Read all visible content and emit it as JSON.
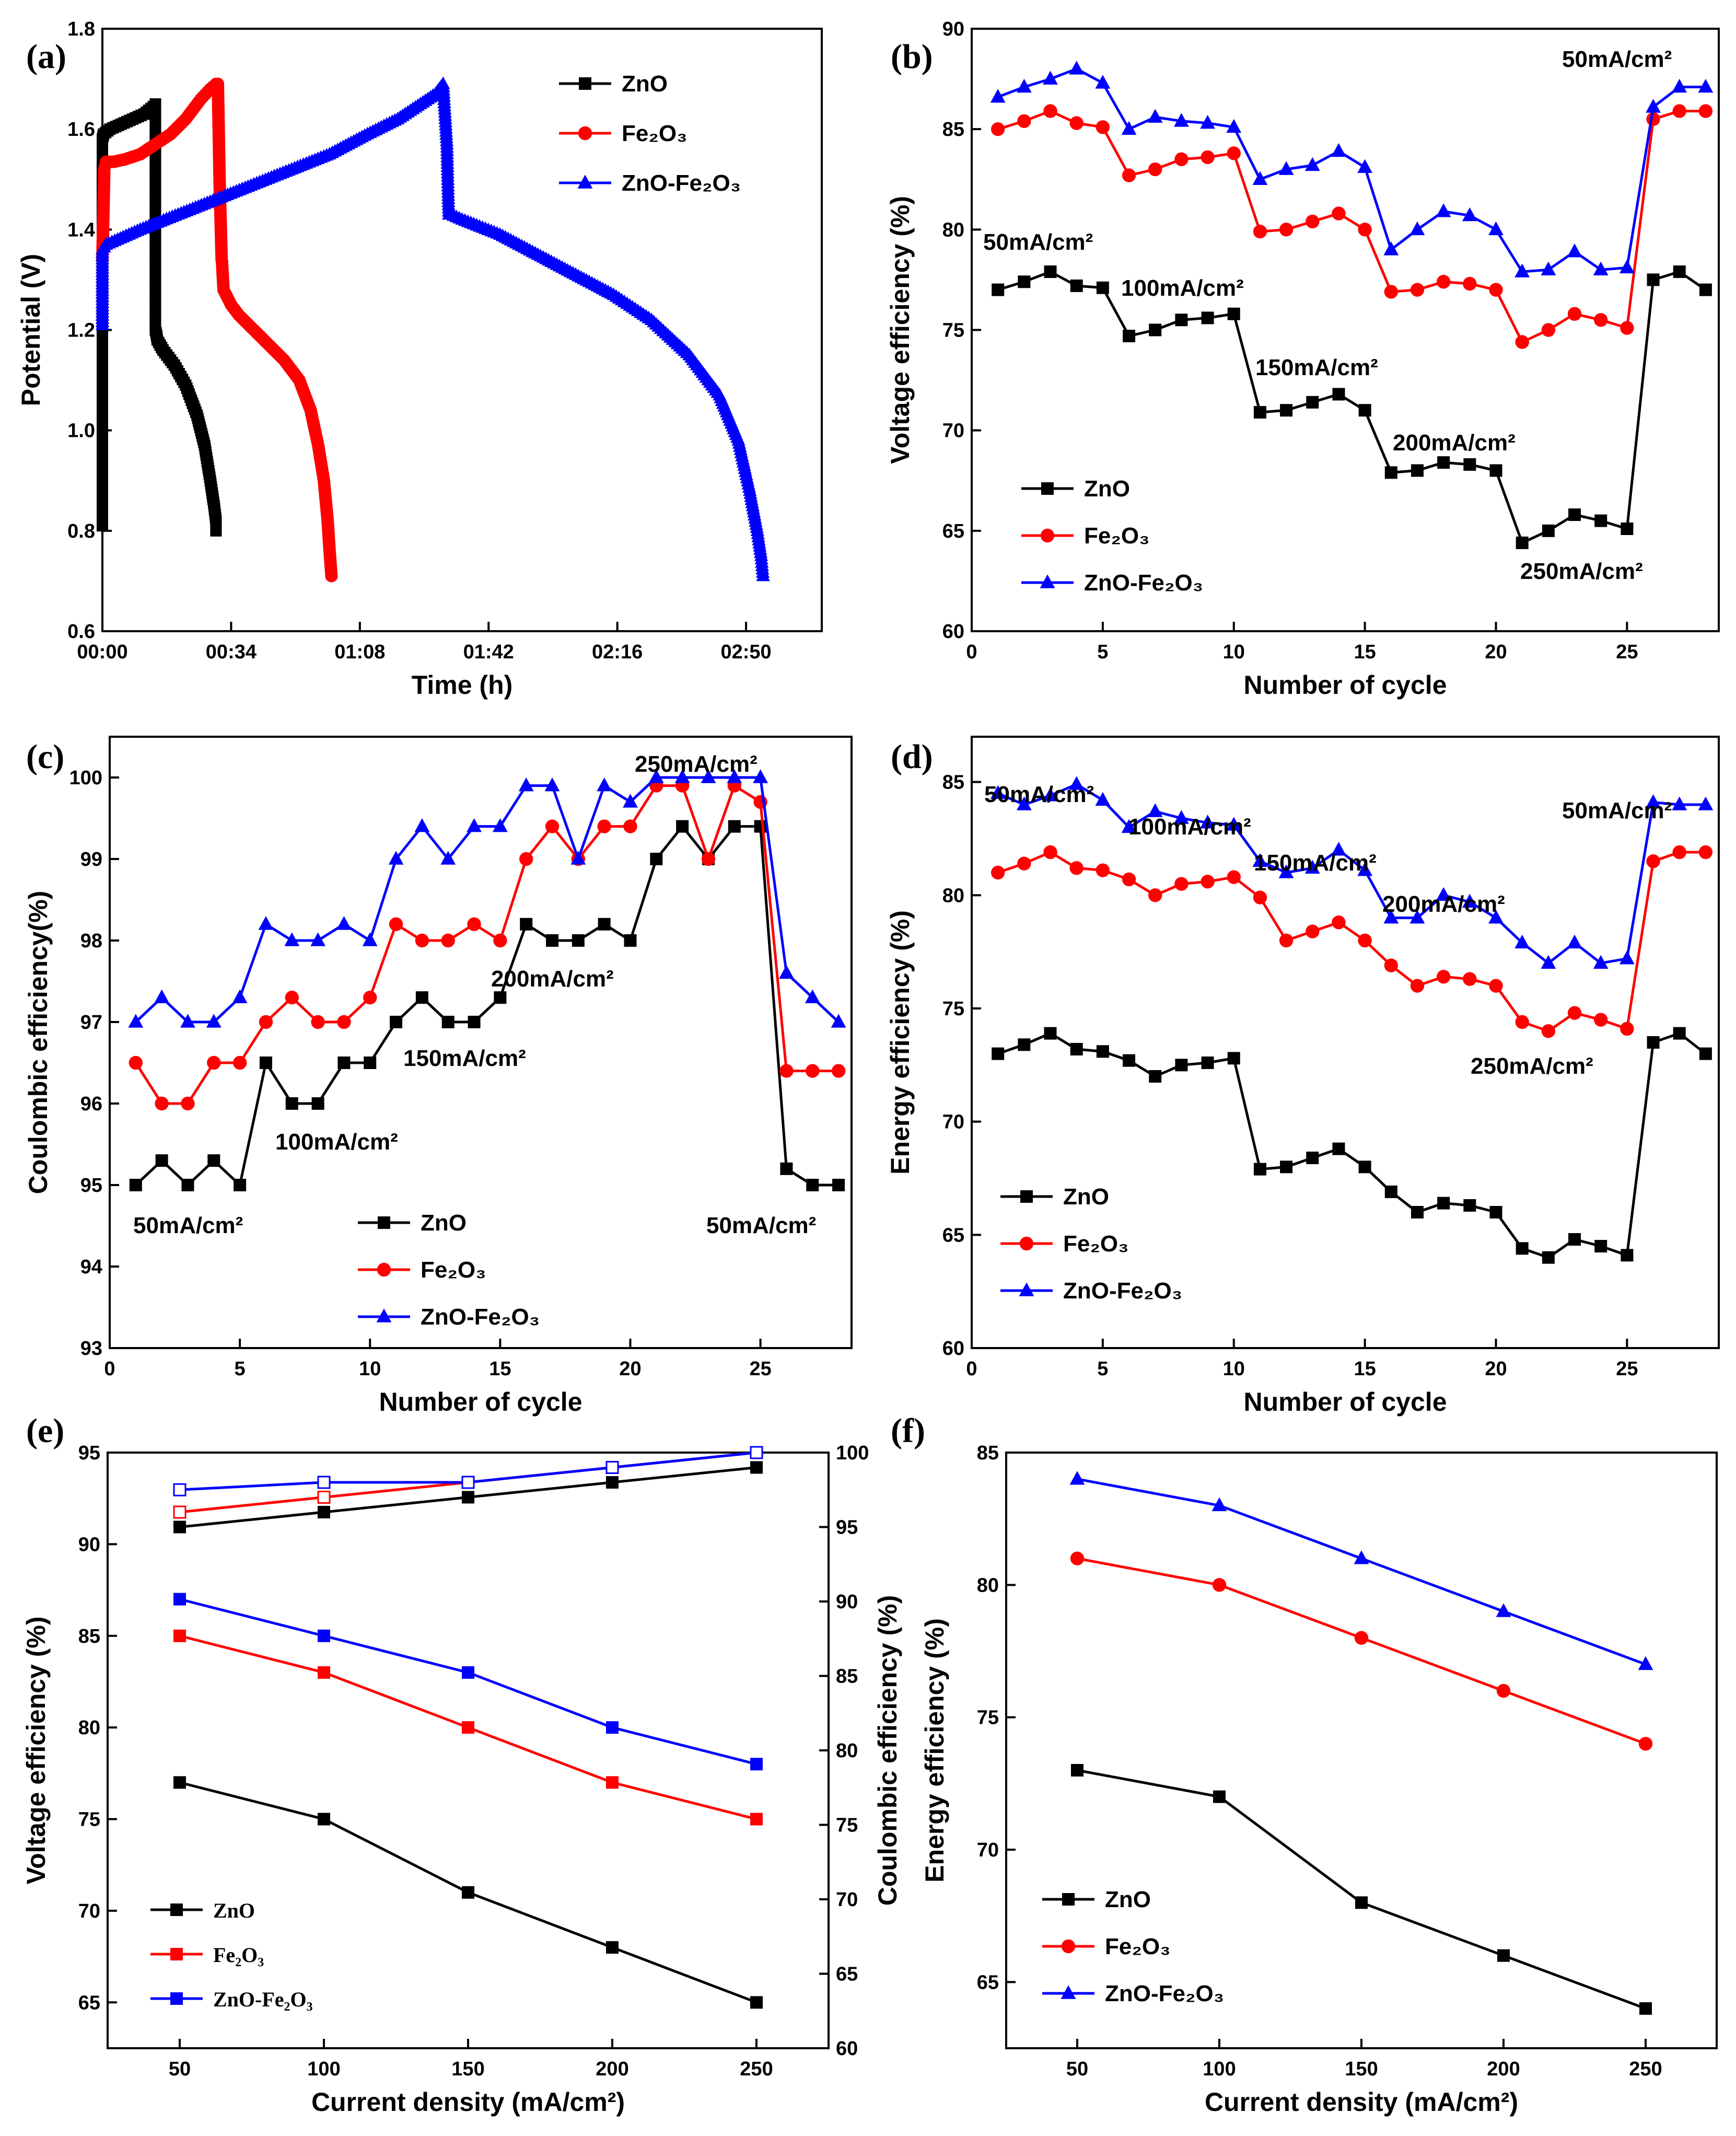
{
  "colors": {
    "ZnO": "#000000",
    "Fe2O3": "#ff0000",
    "ZnO-Fe2O3": "#0000ff"
  },
  "chart_data": [
    {
      "id": "a",
      "panel_label": "(a)",
      "type": "line",
      "xlabel": "Time (h)",
      "ylabel": "Potential (V)",
      "xlim": [
        0,
        190
      ],
      "ylim": [
        0.6,
        1.8
      ],
      "xticks": [
        0,
        34,
        68,
        102,
        136,
        170
      ],
      "xtick_labels": [
        "00:00",
        "00:34",
        "01:08",
        "01:42",
        "02:16",
        "02:50"
      ],
      "yticks": [
        0.6,
        0.8,
        1.0,
        1.2,
        1.4,
        1.6,
        1.8
      ],
      "ytick_labels": [
        "0.6",
        "0.8",
        "1.0",
        "1.2",
        "1.4",
        "1.6",
        "1.8"
      ],
      "legend": [
        "ZnO",
        "Fe₂O₃",
        "ZnO-Fe₂O₃"
      ],
      "series": [
        {
          "name": "ZnO",
          "marker": "square",
          "dense": true,
          "x": [
            0,
            0,
            0.3,
            2,
            5,
            8,
            11,
            13.5,
            14,
            14,
            14.3,
            14.5,
            16,
            19,
            22,
            25,
            27,
            28.5,
            29.5,
            30,
            30
          ],
          "y": [
            0.81,
            1.58,
            1.59,
            1.6,
            1.61,
            1.62,
            1.63,
            1.645,
            1.65,
            1.2,
            1.19,
            1.18,
            1.16,
            1.13,
            1.09,
            1.03,
            0.97,
            0.9,
            0.85,
            0.82,
            0.8
          ]
        },
        {
          "name": "Fe2O3",
          "marker": "circle",
          "dense": true,
          "x": [
            0,
            0.5,
            1,
            3,
            6,
            10,
            14,
            18,
            22,
            26,
            28.5,
            30,
            30.5,
            31,
            31.5,
            31.6,
            31.7,
            32,
            34,
            36,
            40,
            44,
            48,
            52,
            55,
            57,
            58.5,
            59.5,
            60,
            60.5
          ],
          "y": [
            1.34,
            1.52,
            1.535,
            1.535,
            1.54,
            1.55,
            1.57,
            1.59,
            1.62,
            1.66,
            1.68,
            1.69,
            1.69,
            1.48,
            1.34,
            1.335,
            1.32,
            1.28,
            1.25,
            1.23,
            1.2,
            1.17,
            1.14,
            1.1,
            1.04,
            0.97,
            0.9,
            0.82,
            0.76,
            0.71
          ]
        },
        {
          "name": "ZnO-Fe2O3",
          "marker": "triangle",
          "dense": true,
          "x": [
            0,
            0,
            1,
            10,
            20,
            30,
            40,
            50,
            60,
            70,
            78,
            84,
            88,
            90,
            91,
            91.3,
            91.5,
            92,
            95,
            105,
            115,
            125,
            135,
            145,
            155,
            163,
            168,
            171,
            173,
            174,
            174.5
          ],
          "y": [
            1.21,
            1.36,
            1.37,
            1.4,
            1.43,
            1.46,
            1.49,
            1.52,
            1.55,
            1.59,
            1.62,
            1.65,
            1.67,
            1.69,
            1.57,
            1.48,
            1.43,
            1.43,
            1.42,
            1.39,
            1.35,
            1.31,
            1.27,
            1.22,
            1.15,
            1.07,
            0.98,
            0.88,
            0.8,
            0.75,
            0.71
          ]
        }
      ]
    },
    {
      "id": "b",
      "panel_label": "(b)",
      "type": "line",
      "xlabel": "Number of cycle",
      "ylabel": "Voltage efficiency (%)",
      "xlim": [
        0,
        28.5
      ],
      "ylim": [
        60,
        90
      ],
      "xticks": [
        0,
        5,
        10,
        15,
        20,
        25
      ],
      "xtick_labels": [
        "0",
        "5",
        "10",
        "15",
        "20",
        "25"
      ],
      "yticks": [
        60,
        65,
        70,
        75,
        80,
        85,
        90
      ],
      "ytick_labels": [
        "60",
        "65",
        "70",
        "75",
        "80",
        "85",
        "90"
      ],
      "legend": [
        "ZnO",
        "Fe₂O₃",
        "ZnO-Fe₂O₃"
      ],
      "annotations": [
        "50mA/cm²",
        "100mA/cm²",
        "150mA/cm²",
        "200mA/cm²",
        "250mA/cm²",
        "50mA/cm²"
      ],
      "x": [
        1,
        2,
        3,
        4,
        5,
        6,
        7,
        8,
        9,
        10,
        11,
        12,
        13,
        14,
        15,
        16,
        17,
        18,
        19,
        20,
        21,
        22,
        23,
        24,
        25,
        26,
        27,
        28
      ],
      "series": [
        {
          "name": "ZnO",
          "marker": "square",
          "values": [
            77,
            77.4,
            77.9,
            77.2,
            77.1,
            74.7,
            75,
            75.5,
            75.6,
            75.8,
            70.9,
            71,
            71.4,
            71.8,
            71,
            67.9,
            68,
            68.4,
            68.3,
            68,
            64.4,
            65,
            65.8,
            65.5,
            65.1,
            77.5,
            77.9,
            77
          ]
        },
        {
          "name": "Fe2O3",
          "marker": "circle",
          "values": [
            85,
            85.4,
            85.9,
            85.3,
            85.1,
            82.7,
            83,
            83.5,
            83.6,
            83.8,
            79.9,
            80,
            80.4,
            80.8,
            80,
            76.9,
            77,
            77.4,
            77.3,
            77,
            74.4,
            75,
            75.8,
            75.5,
            75.1,
            85.5,
            85.9,
            85.9
          ]
        },
        {
          "name": "ZnO-Fe2O3",
          "marker": "triangle",
          "values": [
            86.6,
            87.1,
            87.5,
            88,
            87.3,
            85,
            85.6,
            85.4,
            85.3,
            85.1,
            82.5,
            83,
            83.2,
            83.9,
            83.1,
            79,
            80,
            80.9,
            80.7,
            80,
            77.9,
            78,
            78.9,
            78,
            78.1,
            86.1,
            87.1,
            87.1
          ]
        }
      ]
    },
    {
      "id": "c",
      "panel_label": "(c)",
      "type": "line",
      "xlabel": "Number of cycle",
      "ylabel": "Coulombic efficiency(%)",
      "xlim": [
        0,
        28.5
      ],
      "ylim": [
        93,
        100.5
      ],
      "xticks": [
        0,
        5,
        10,
        15,
        20,
        25
      ],
      "xtick_labels": [
        "0",
        "5",
        "10",
        "15",
        "20",
        "25"
      ],
      "yticks": [
        93,
        94,
        95,
        96,
        97,
        98,
        99,
        100
      ],
      "ytick_labels": [
        "93",
        "94",
        "95",
        "96",
        "97",
        "98",
        "99",
        "100"
      ],
      "legend": [
        "ZnO",
        "Fe₂O₃",
        "ZnO-Fe₂O₃"
      ],
      "annotations": [
        "50mA/cm²",
        "100mA/cm²",
        "150mA/cm²",
        "200mA/cm²",
        "250mA/cm²",
        "50mA/cm²"
      ],
      "x": [
        1,
        2,
        3,
        4,
        5,
        6,
        7,
        8,
        9,
        10,
        11,
        12,
        13,
        14,
        15,
        16,
        17,
        18,
        19,
        20,
        21,
        22,
        23,
        24,
        25,
        26,
        27,
        28
      ],
      "series": [
        {
          "name": "ZnO",
          "marker": "square",
          "values": [
            95,
            95.3,
            95,
            95.3,
            95,
            96.5,
            96,
            96,
            96.5,
            96.5,
            97,
            97.3,
            97,
            97,
            97.3,
            98.2,
            98,
            98,
            98.2,
            98,
            99,
            99.4,
            99,
            99.4,
            99.4,
            95.2,
            95,
            95
          ]
        },
        {
          "name": "Fe2O3",
          "marker": "circle",
          "values": [
            96.5,
            96,
            96,
            96.5,
            96.5,
            97,
            97.3,
            97,
            97,
            97.3,
            98.2,
            98,
            98,
            98.2,
            98,
            99,
            99.4,
            99,
            99.4,
            99.4,
            99.9,
            99.9,
            99,
            99.9,
            99.7,
            96.4,
            96.4,
            96.4
          ]
        },
        {
          "name": "ZnO-Fe2O3",
          "marker": "triangle",
          "values": [
            97,
            97.3,
            97,
            97,
            97.3,
            98.2,
            98,
            98,
            98.2,
            98,
            99,
            99.4,
            99,
            99.4,
            99.4,
            99.9,
            99.9,
            99,
            99.9,
            99.7,
            100,
            100,
            100,
            100,
            100,
            97.6,
            97.3,
            97
          ]
        }
      ]
    },
    {
      "id": "d",
      "panel_label": "(d)",
      "type": "line",
      "xlabel": "Number of cycle",
      "ylabel": "Energy efficiency (%)",
      "xlim": [
        0,
        28.5
      ],
      "ylim": [
        60,
        87
      ],
      "xticks": [
        0,
        5,
        10,
        15,
        20,
        25
      ],
      "xtick_labels": [
        "0",
        "5",
        "10",
        "15",
        "20",
        "25"
      ],
      "yticks": [
        60,
        65,
        70,
        75,
        80,
        85
      ],
      "ytick_labels": [
        "60",
        "65",
        "70",
        "75",
        "80",
        "85"
      ],
      "legend": [
        "ZnO",
        "Fe₂O₃",
        "ZnO-Fe₂O₃"
      ],
      "annotations": [
        "50mA/cm²",
        "100mA/cm²",
        "150mA/cm²",
        "200mA/cm²",
        "250mA/cm²",
        "50mA/cm²"
      ],
      "x": [
        1,
        2,
        3,
        4,
        5,
        6,
        7,
        8,
        9,
        10,
        11,
        12,
        13,
        14,
        15,
        16,
        17,
        18,
        19,
        20,
        21,
        22,
        23,
        24,
        25,
        26,
        27,
        28
      ],
      "series": [
        {
          "name": "ZnO",
          "marker": "square",
          "values": [
            73,
            73.4,
            73.9,
            73.2,
            73.1,
            72.7,
            72,
            72.5,
            72.6,
            72.8,
            67.9,
            68,
            68.4,
            68.8,
            68,
            66.9,
            66,
            66.4,
            66.3,
            66,
            64.4,
            64,
            64.8,
            64.5,
            64.1,
            73.5,
            73.9,
            73
          ]
        },
        {
          "name": "Fe2O3",
          "marker": "circle",
          "values": [
            81,
            81.4,
            81.9,
            81.2,
            81.1,
            80.7,
            80,
            80.5,
            80.6,
            80.8,
            79.9,
            78,
            78.4,
            78.8,
            78,
            76.9,
            76,
            76.4,
            76.3,
            76,
            74.4,
            74,
            74.8,
            74.5,
            74.1,
            81.5,
            81.9,
            81.9
          ]
        },
        {
          "name": "ZnO-Fe2O3",
          "marker": "triangle",
          "values": [
            84.5,
            84,
            84.4,
            84.9,
            84.2,
            83,
            83.7,
            83.4,
            83.2,
            83.1,
            81.5,
            81,
            81.2,
            82,
            81.1,
            79,
            79,
            80,
            79.7,
            79,
            77.9,
            77,
            77.9,
            77,
            77.2,
            84.1,
            84,
            84
          ]
        }
      ]
    },
    {
      "id": "e",
      "panel_label": "(e)",
      "type": "line",
      "xlabel": "Current density (mA/cm²)",
      "ylabel": "Voltage efficiency (%)",
      "ylabel_right": "Coulombic efficiency (%)",
      "xlim": [
        25,
        275
      ],
      "ylim": [
        62.5,
        95
      ],
      "ylim_right": [
        60,
        100
      ],
      "xticks": [
        50,
        100,
        150,
        200,
        250
      ],
      "xtick_labels": [
        "50",
        "100",
        "150",
        "200",
        "250"
      ],
      "yticks": [
        65,
        70,
        75,
        80,
        85,
        90,
        95
      ],
      "ytick_labels": [
        "65",
        "70",
        "75",
        "80",
        "85",
        "90",
        "95"
      ],
      "yticks_right": [
        60,
        65,
        70,
        75,
        80,
        85,
        90,
        95,
        100
      ],
      "ytick_labels_right": [
        "60",
        "65",
        "70",
        "75",
        "80",
        "85",
        "90",
        "95",
        "100"
      ],
      "legend": [
        "ZnO",
        "Fe₂O₃",
        "ZnO-Fe₂O₃"
      ],
      "x": [
        50,
        100,
        150,
        200,
        250
      ],
      "series": [
        {
          "name": "ZnO",
          "axis": "left",
          "marker": "square",
          "values": [
            77,
            75,
            71,
            68,
            65
          ]
        },
        {
          "name": "Fe2O3",
          "axis": "left",
          "marker": "square",
          "values": [
            85,
            83,
            80,
            77,
            75
          ]
        },
        {
          "name": "ZnO-Fe2O3",
          "axis": "left",
          "marker": "square",
          "values": [
            87,
            85,
            83,
            80,
            78
          ]
        },
        {
          "name": "ZnO",
          "axis": "right",
          "marker": "square",
          "values": [
            95,
            96,
            97,
            98,
            99
          ]
        },
        {
          "name": "Fe2O3",
          "axis": "right",
          "marker": "open-square",
          "values": [
            96,
            97,
            98,
            99,
            100
          ]
        },
        {
          "name": "ZnO-Fe2O3",
          "axis": "right",
          "marker": "open-square",
          "values": [
            97.5,
            98,
            98,
            99,
            100
          ]
        }
      ]
    },
    {
      "id": "f",
      "panel_label": "(f)",
      "type": "line",
      "xlabel": "Current density (mA/cm²)",
      "ylabel": "Energy efficiency (%)",
      "xlim": [
        25,
        275
      ],
      "ylim": [
        62.5,
        85
      ],
      "xticks": [
        50,
        100,
        150,
        200,
        250
      ],
      "xtick_labels": [
        "50",
        "100",
        "150",
        "200",
        "250"
      ],
      "yticks": [
        65,
        70,
        75,
        80,
        85
      ],
      "ytick_labels": [
        "65",
        "70",
        "75",
        "80",
        "85"
      ],
      "legend": [
        "ZnO",
        "Fe₂O₃",
        "ZnO-Fe₂O₃"
      ],
      "x": [
        50,
        100,
        150,
        200,
        250
      ],
      "series": [
        {
          "name": "ZnO",
          "marker": "square",
          "values": [
            73,
            72,
            68,
            66,
            64
          ]
        },
        {
          "name": "Fe2O3",
          "marker": "circle",
          "values": [
            81,
            80,
            78,
            76,
            74
          ]
        },
        {
          "name": "ZnO-Fe2O3",
          "marker": "triangle",
          "values": [
            84,
            83,
            81,
            79,
            77
          ]
        }
      ]
    }
  ]
}
